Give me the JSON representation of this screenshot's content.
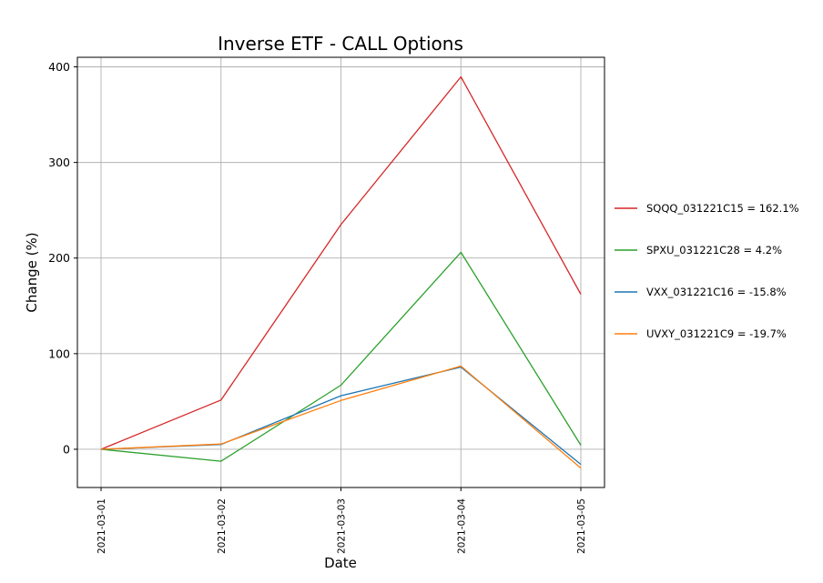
{
  "chart_data": {
    "type": "line",
    "title": "Inverse ETF - CALL Options",
    "xlabel": "Date",
    "ylabel": "Change (%)",
    "x": [
      "2021-03-01",
      "2021-03-02",
      "2021-03-03",
      "2021-03-04",
      "2021-03-05"
    ],
    "ylim": [
      -40,
      410
    ],
    "yticks": [
      0,
      100,
      200,
      300,
      400
    ],
    "grid": true,
    "legend": "right",
    "series": [
      {
        "name": "SQQQ_031221C15 = 162.1%",
        "color": "#d62728",
        "values": [
          0,
          51.5,
          235,
          389.5,
          162.1
        ]
      },
      {
        "name": "SPXU_031221C28 = 4.2%",
        "color": "#2ca02c",
        "values": [
          0,
          -12.5,
          67,
          206,
          4.2
        ]
      },
      {
        "name": "VXX_031221C16 = -15.8%",
        "color": "#1f77b4",
        "values": [
          0,
          5,
          56,
          86,
          -15.8
        ]
      },
      {
        "name": "UVXY_031221C9 = -19.7%",
        "color": "#ff7f0e",
        "values": [
          0,
          5.5,
          51,
          87,
          -19.7
        ]
      }
    ]
  }
}
